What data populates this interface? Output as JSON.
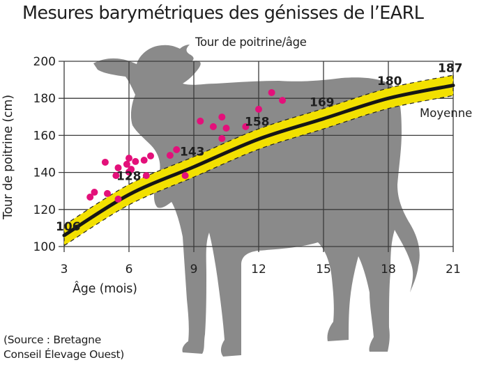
{
  "title": "Mesures barymétriques des génisses de l’EARL",
  "subtitle": "Tour de poitrine/âge",
  "source": {
    "line1": "(Source : Bretagne",
    "line2": "Conseil Élevage Ouest)"
  },
  "colors": {
    "band": "#f2e000",
    "mean_line": "#161616",
    "points": "#e3107a",
    "silhouette": "#8a8a8a",
    "grid": "#3a3a3a",
    "text": "#1e1e1e"
  },
  "decor": {
    "silhouette_icon": "cow-silhouette-icon"
  },
  "chart_data": {
    "type": "scatter",
    "title": "Mesures barymétriques des génisses de l’EARL",
    "subtitle": "Tour de poitrine/âge",
    "xlabel": "Âge (mois)",
    "ylabel": "Tour de poitrine (cm)",
    "xlim": [
      3,
      21
    ],
    "ylim": [
      100,
      200
    ],
    "xticks": [
      3,
      6,
      9,
      12,
      15,
      18,
      21
    ],
    "yticks": [
      100,
      120,
      140,
      160,
      180,
      200
    ],
    "grid": true,
    "legend": {
      "entries": [
        "Moyenne"
      ],
      "position": "right, annotation beside curve"
    },
    "series": [
      {
        "name": "Moyenne",
        "kind": "line",
        "x": [
          3,
          6,
          9,
          12,
          15,
          18,
          21
        ],
        "values": [
          106,
          128,
          143,
          158,
          169,
          180,
          187
        ],
        "labels": [
          "106",
          "128",
          "143",
          "158",
          "169",
          "180",
          "187"
        ],
        "band": {
          "upper_offset": 5.5,
          "lower_offset": 5.5,
          "style": "yellow band with dashed edges"
        }
      },
      {
        "name": "Génisses de l’EARL",
        "kind": "scatter",
        "points": [
          [
            4.2,
            126.7
          ],
          [
            4.4,
            129.3
          ],
          [
            4.9,
            145.5
          ],
          [
            5.0,
            128.6
          ],
          [
            5.4,
            138.3
          ],
          [
            5.5,
            142.5
          ],
          [
            5.5,
            125.6
          ],
          [
            5.9,
            144.4
          ],
          [
            6.0,
            147.7
          ],
          [
            6.0,
            140.2
          ],
          [
            6.1,
            141.7
          ],
          [
            6.3,
            145.9
          ],
          [
            6.7,
            146.6
          ],
          [
            6.8,
            138.3
          ],
          [
            7.0,
            148.9
          ],
          [
            7.9,
            149.2
          ],
          [
            8.2,
            152.3
          ],
          [
            8.6,
            138.3
          ],
          [
            9.3,
            167.7
          ],
          [
            9.9,
            164.7
          ],
          [
            10.3,
            169.9
          ],
          [
            10.3,
            158.3
          ],
          [
            10.5,
            163.9
          ],
          [
            11.4,
            164.7
          ],
          [
            12.0,
            174.1
          ],
          [
            12.6,
            183.1
          ],
          [
            13.1,
            178.9
          ]
        ]
      }
    ],
    "annotations": [
      {
        "text": "106",
        "x": 3,
        "y": 106
      },
      {
        "text": "128",
        "x": 6,
        "y": 128
      },
      {
        "text": "143",
        "x": 9,
        "y": 143
      },
      {
        "text": "158",
        "x": 12,
        "y": 158
      },
      {
        "text": "169",
        "x": 15,
        "y": 169
      },
      {
        "text": "180",
        "x": 18,
        "y": 180
      },
      {
        "text": "187",
        "x": 21,
        "y": 187
      },
      {
        "text": "Moyenne",
        "x": 19.5,
        "y": 175
      }
    ]
  }
}
